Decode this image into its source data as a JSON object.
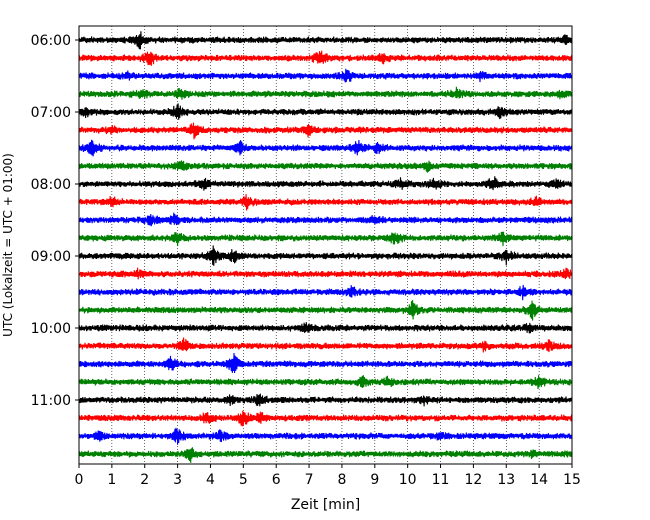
{
  "chart_data": {
    "type": "line",
    "title": "",
    "xlabel": "Zeit  [min]",
    "ylabel": "UTC (Lokalzeit = UTC + 01:00)",
    "xlim": [
      0,
      15
    ],
    "xticks": [
      0,
      1,
      2,
      3,
      4,
      5,
      6,
      7,
      8,
      9,
      10,
      11,
      12,
      13,
      14,
      15
    ],
    "y_tick_labels": [
      "06:00",
      "07:00",
      "08:00",
      "09:00",
      "10:00",
      "11:00"
    ],
    "trace_interval_min": 15,
    "first_trace": "06:00",
    "colors_cycle": [
      "#000000",
      "#ff0000",
      "#0000ff",
      "#008000"
    ],
    "grid": "vertical dotted",
    "legend": "none",
    "series": [
      {
        "start": "06:00",
        "color": "#000000",
        "events": [
          [
            1.85,
            1.0
          ],
          [
            14.8,
            0.4
          ]
        ]
      },
      {
        "start": "06:15",
        "color": "#ff0000",
        "events": [
          [
            2.15,
            0.9
          ],
          [
            7.35,
            1.0
          ],
          [
            9.25,
            0.5
          ]
        ]
      },
      {
        "start": "06:30",
        "color": "#0000ff",
        "events": [
          [
            1.45,
            0.4
          ],
          [
            8.15,
            0.7
          ],
          [
            12.2,
            0.4
          ]
        ]
      },
      {
        "start": "06:45",
        "color": "#008000",
        "events": [
          [
            1.9,
            0.5
          ],
          [
            3.1,
            0.6
          ],
          [
            11.5,
            0.5
          ],
          [
            14.7,
            0.4
          ]
        ]
      },
      {
        "start": "07:00",
        "color": "#000000",
        "events": [
          [
            0.2,
            0.4
          ],
          [
            3.0,
            1.0
          ],
          [
            12.8,
            0.5
          ]
        ]
      },
      {
        "start": "07:15",
        "color": "#ff0000",
        "events": [
          [
            3.5,
            0.9
          ],
          [
            7.0,
            0.6
          ],
          [
            1.0,
            0.4
          ]
        ]
      },
      {
        "start": "07:30",
        "color": "#0000ff",
        "events": [
          [
            0.4,
            0.9
          ],
          [
            4.9,
            0.6
          ],
          [
            8.5,
            0.8
          ],
          [
            9.1,
            0.5
          ]
        ]
      },
      {
        "start": "07:45",
        "color": "#008000",
        "events": [
          [
            3.1,
            0.5
          ],
          [
            10.6,
            0.4
          ]
        ]
      },
      {
        "start": "08:00",
        "color": "#000000",
        "events": [
          [
            3.8,
            0.6
          ],
          [
            9.8,
            0.6
          ],
          [
            10.8,
            0.5
          ],
          [
            12.6,
            0.9
          ],
          [
            14.5,
            0.4
          ]
        ]
      },
      {
        "start": "08:15",
        "color": "#ff0000",
        "events": [
          [
            1.0,
            0.6
          ],
          [
            5.1,
            0.7
          ],
          [
            13.9,
            0.5
          ]
        ]
      },
      {
        "start": "08:30",
        "color": "#0000ff",
        "events": [
          [
            2.2,
            0.6
          ],
          [
            2.9,
            0.6
          ],
          [
            9.0,
            0.5
          ]
        ]
      },
      {
        "start": "08:45",
        "color": "#008000",
        "events": [
          [
            3.0,
            0.6
          ],
          [
            9.6,
            0.8
          ],
          [
            12.9,
            0.6
          ]
        ]
      },
      {
        "start": "09:00",
        "color": "#000000",
        "events": [
          [
            4.1,
            1.0
          ],
          [
            4.7,
            0.7
          ],
          [
            13.0,
            0.8
          ]
        ]
      },
      {
        "start": "09:15",
        "color": "#ff0000",
        "events": [
          [
            1.8,
            0.4
          ],
          [
            14.8,
            0.6
          ]
        ]
      },
      {
        "start": "09:30",
        "color": "#0000ff",
        "events": [
          [
            8.3,
            0.5
          ],
          [
            13.5,
            0.6
          ]
        ]
      },
      {
        "start": "09:45",
        "color": "#008000",
        "events": [
          [
            10.15,
            1.0
          ],
          [
            13.8,
            0.9
          ]
        ]
      },
      {
        "start": "10:00",
        "color": "#000000",
        "events": [
          [
            6.9,
            0.5
          ],
          [
            13.7,
            0.4
          ]
        ]
      },
      {
        "start": "10:15",
        "color": "#ff0000",
        "events": [
          [
            3.2,
            0.7
          ],
          [
            12.3,
            0.5
          ],
          [
            14.3,
            0.5
          ]
        ]
      },
      {
        "start": "10:30",
        "color": "#0000ff",
        "events": [
          [
            2.8,
            0.8
          ],
          [
            4.7,
            1.0
          ]
        ]
      },
      {
        "start": "10:45",
        "color": "#008000",
        "events": [
          [
            8.6,
            0.6
          ],
          [
            9.4,
            0.5
          ],
          [
            14.0,
            0.7
          ]
        ]
      },
      {
        "start": "11:00",
        "color": "#000000",
        "events": [
          [
            4.6,
            0.4
          ],
          [
            5.5,
            0.7
          ],
          [
            10.5,
            0.4
          ]
        ]
      },
      {
        "start": "11:15",
        "color": "#ff0000",
        "events": [
          [
            3.9,
            0.7
          ],
          [
            5.0,
            1.0
          ],
          [
            5.5,
            0.6
          ]
        ]
      },
      {
        "start": "11:30",
        "color": "#0000ff",
        "events": [
          [
            0.6,
            0.6
          ],
          [
            3.0,
            0.9
          ],
          [
            4.3,
            0.6
          ],
          [
            11.0,
            0.4
          ]
        ]
      },
      {
        "start": "11:45",
        "color": "#008000",
        "events": [
          [
            3.4,
            0.7
          ],
          [
            13.8,
            0.3
          ]
        ]
      }
    ]
  }
}
